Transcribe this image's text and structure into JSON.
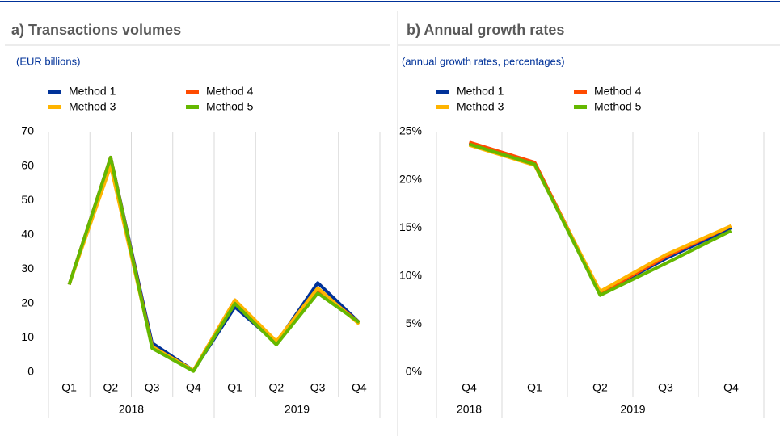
{
  "chart_data": [
    {
      "type": "line",
      "title": "a) Transactions volumes",
      "subtitle": "(EUR billions)",
      "category_groups": [
        {
          "label": "2018",
          "categories": [
            "Q1",
            "Q2",
            "Q3",
            "Q4"
          ]
        },
        {
          "label": "2019",
          "categories": [
            "Q1",
            "Q2",
            "Q3",
            "Q4"
          ]
        }
      ],
      "series": [
        {
          "name": "Method 1",
          "color": "#003299",
          "values": [
            25.5,
            62.5,
            8.5,
            0.5,
            19,
            8.5,
            26,
            14.5
          ]
        },
        {
          "name": "Method 4",
          "color": "#ff4b00",
          "values": [
            25.5,
            62.5,
            7.5,
            0.5,
            21,
            8.5,
            24,
            14.5
          ]
        },
        {
          "name": "Method 3",
          "color": "#ffb400",
          "values": [
            25.5,
            60,
            7.5,
            0.5,
            21,
            9,
            24.5,
            14
          ]
        },
        {
          "name": "Method 5",
          "color": "#65b800",
          "values": [
            25.5,
            62.5,
            7,
            0.3,
            20,
            8,
            23,
            14.5
          ]
        }
      ],
      "ylim": [
        0,
        70
      ],
      "yticks": [
        0,
        10,
        20,
        30,
        40,
        50,
        60,
        70
      ],
      "grid": true,
      "legend": "top-left"
    },
    {
      "type": "line",
      "title": "b) Annual growth rates",
      "subtitle": "(annual growth rates, percentages)",
      "category_groups": [
        {
          "label": "2018",
          "categories": [
            "Q4"
          ]
        },
        {
          "label": "2019",
          "categories": [
            "Q1",
            "Q2",
            "Q3",
            "Q4"
          ]
        }
      ],
      "series": [
        {
          "name": "Method 1",
          "color": "#003299",
          "values": [
            23.8,
            21.7,
            8.2,
            11.8,
            15.0
          ]
        },
        {
          "name": "Method 4",
          "color": "#ff4b00",
          "values": [
            23.9,
            21.8,
            8.2,
            12.0,
            15.2
          ]
        },
        {
          "name": "Method 3",
          "color": "#ffb400",
          "values": [
            23.6,
            21.5,
            8.4,
            12.2,
            15.2
          ]
        },
        {
          "name": "Method 5",
          "color": "#65b800",
          "values": [
            23.7,
            21.6,
            8.0,
            11.3,
            14.7
          ]
        }
      ],
      "ylim": [
        0,
        25
      ],
      "yticks": [
        {
          "value": 0,
          "label": "0%"
        },
        {
          "value": 5,
          "label": "5%"
        },
        {
          "value": 10,
          "label": "10%"
        },
        {
          "value": 15,
          "label": "15%"
        },
        {
          "value": 20,
          "label": "20%"
        },
        {
          "value": 25,
          "label": "25%"
        }
      ],
      "grid": true,
      "legend": "top-left"
    }
  ]
}
